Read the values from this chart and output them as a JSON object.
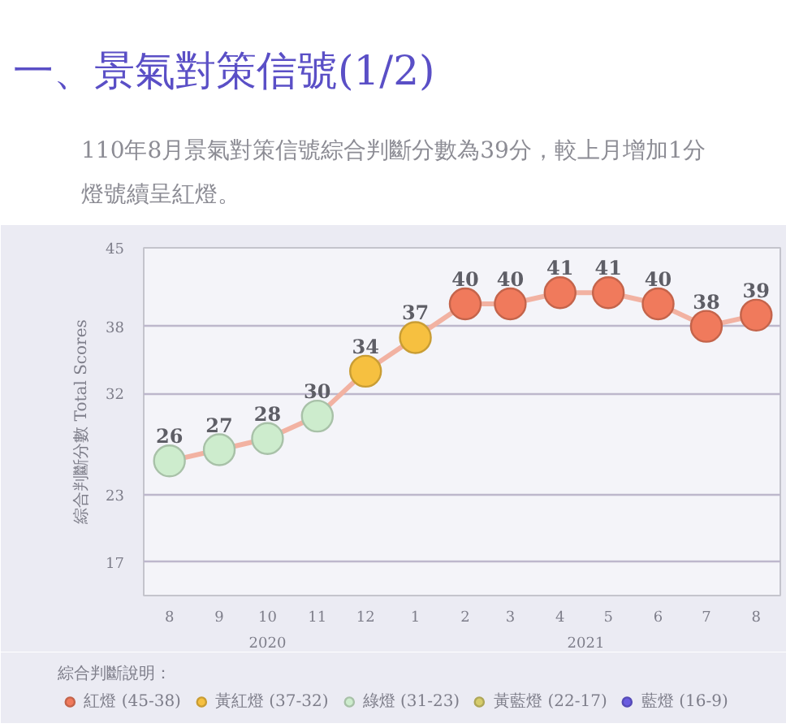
{
  "chart_data": {
    "type": "line",
    "title": "一、景氣對策信號(1/2)",
    "subtitle": "110年8月景氣對策信號綜合判斷分數為39分，較上月增加1分燈號續呈紅燈。",
    "ylabel": "綜合判斷分數 Total Scores",
    "legend_title": "綜合判斷說明：",
    "x": [
      "2020-08",
      "2020-09",
      "2020-10",
      "2020-11",
      "2020-12",
      "2021-01",
      "2021-02",
      "2021-03",
      "2021-04",
      "2021-05",
      "2021-06",
      "2021-07",
      "2021-08"
    ],
    "xlim": [
      "2020-07-16",
      "2021-08-16"
    ],
    "xticks": [
      {
        "value": "2020-08",
        "label": "8"
      },
      {
        "value": "2020-09",
        "label": "9"
      },
      {
        "value": "2020-10",
        "label": "10"
      },
      {
        "value": "2020-11",
        "label": "11"
      },
      {
        "value": "2020-12",
        "label": "12"
      },
      {
        "value": "2021-01",
        "label": "1"
      },
      {
        "value": "2021-02",
        "label": "2"
      },
      {
        "value": "2021-03",
        "label": "3"
      },
      {
        "value": "2021-04",
        "label": "4"
      },
      {
        "value": "2021-05",
        "label": "5"
      },
      {
        "value": "2021-06",
        "label": "6"
      },
      {
        "value": "2021-07",
        "label": "7"
      },
      {
        "value": "2021-08",
        "label": "8"
      }
    ],
    "annotations": [
      "2020",
      "2021"
    ],
    "series": [
      {
        "color": "#f2b2a2",
        "colors": [
          "#cdeccd",
          "#cdeccd",
          "#cdeccd",
          "#cdeccd",
          "#f6c040",
          "#f6c040",
          "#f07a5c",
          "#f07a5c",
          "#f07a5c",
          "#f07a5c",
          "#f07a5c",
          "#f07a5c",
          "#f07a5c"
        ],
        "values": [
          26,
          27,
          28,
          30,
          34,
          37,
          40,
          40,
          41,
          41,
          40,
          38,
          39
        ]
      },
      {
        "type": "scatter",
        "name": "紅燈 (45-38)",
        "color": "#f07a5c",
        "values": [
          null,
          null,
          null,
          null,
          null,
          null,
          null,
          null,
          null,
          null,
          null,
          null,
          null
        ]
      },
      {
        "type": "scatter",
        "name": "黃紅燈 (37-32)",
        "color": "#f6c040",
        "values": [
          null,
          null,
          null,
          null,
          null,
          null,
          null,
          null,
          null,
          null,
          null,
          null,
          null
        ]
      },
      {
        "type": "scatter",
        "name": "綠燈 (31-23)",
        "color": "#cdeccd",
        "values": [
          null,
          null,
          null,
          null,
          null,
          null,
          null,
          null,
          null,
          null,
          null,
          null,
          null
        ]
      },
      {
        "type": "scatter",
        "name": "黃藍燈 (22-17)",
        "color": "#d6cc6c",
        "values": [
          null,
          null,
          null,
          null,
          null,
          null,
          null,
          null,
          null,
          null,
          null,
          null,
          null
        ]
      },
      {
        "type": "scatter",
        "name": "藍燈 (16-9)",
        "color": "#6a5ce0",
        "values": [
          null,
          null,
          null,
          null,
          null,
          null,
          null,
          null,
          null,
          null,
          null,
          null,
          null
        ]
      }
    ],
    "ylim": [
      14,
      45
    ],
    "yticks": [
      17,
      23,
      32,
      38,
      45
    ],
    "grid": "y",
    "legend": "bottom",
    "marker": "circle",
    "data_labels": true
  }
}
